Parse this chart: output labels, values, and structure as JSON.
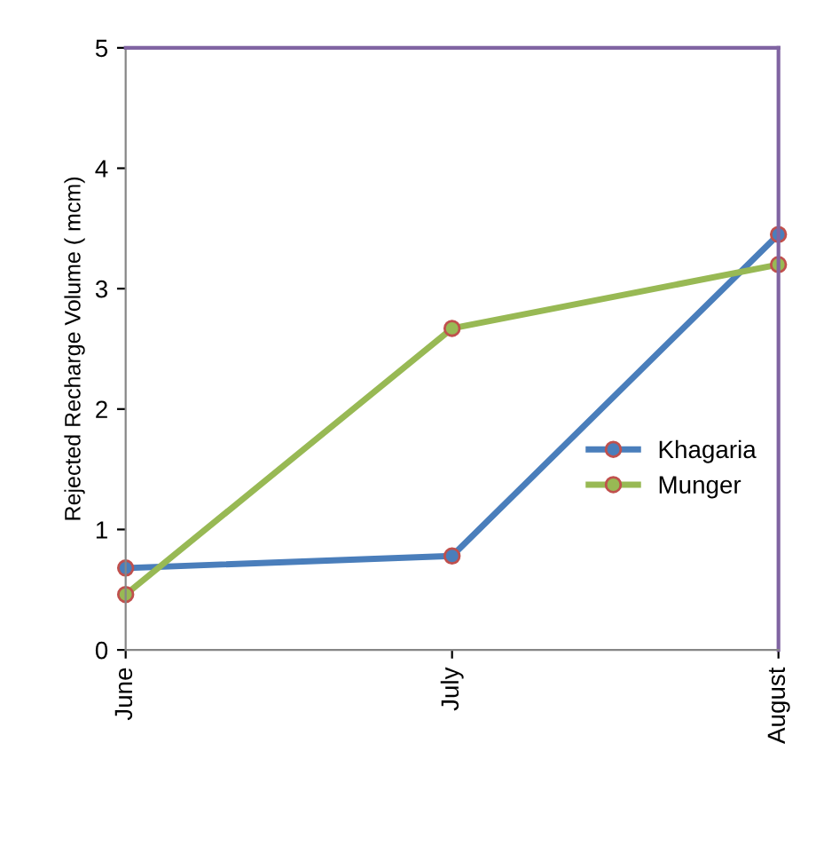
{
  "chart_data": {
    "type": "line",
    "ylabel": "Rejected Recharge Volume ( mcm)",
    "categories": [
      "June",
      "July",
      "August"
    ],
    "series": [
      {
        "name": "Khagaria",
        "color": "#4a7ebb",
        "values": [
          0.68,
          0.78,
          3.45
        ]
      },
      {
        "name": "Munger",
        "color": "#98b954",
        "values": [
          0.46,
          2.67,
          3.2
        ]
      }
    ],
    "ylim": [
      0,
      5
    ],
    "yticks": [
      0,
      1,
      2,
      3,
      4,
      5
    ],
    "grid": false,
    "legend": "right",
    "marker": "circle",
    "line_style": "solid"
  }
}
